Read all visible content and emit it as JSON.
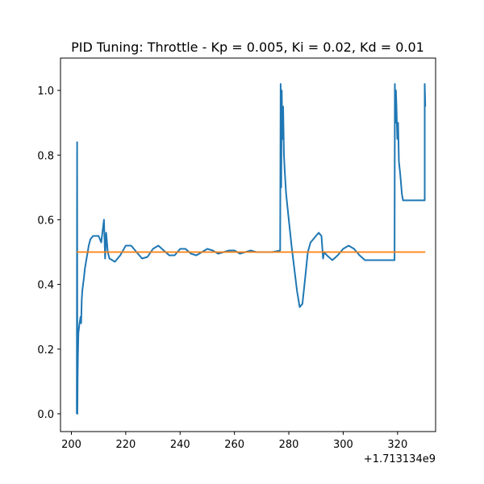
{
  "chart_data": {
    "type": "line",
    "title": "PID Tuning: Throttle - Kp = 0.005, Ki = 0.02, Kd = 0.01",
    "xlabel": "",
    "ylabel": "",
    "x_offset_label": "+1.713134e9",
    "xlim": [
      196,
      334
    ],
    "ylim": [
      -0.055,
      1.1
    ],
    "x_ticks": [
      200,
      220,
      240,
      260,
      280,
      300,
      320
    ],
    "y_ticks": [
      0.0,
      0.2,
      0.4,
      0.6,
      0.8,
      1.0
    ],
    "x_tick_labels": [
      "200",
      "220",
      "240",
      "260",
      "280",
      "300",
      "320"
    ],
    "y_tick_labels": [
      "0.0",
      "0.2",
      "0.4",
      "0.6",
      "0.8",
      "1.0"
    ],
    "grid": false,
    "legend": "none",
    "series": [
      {
        "color": "#1f77b4",
        "x": [
          202.0,
          202.1,
          202.2,
          202.3,
          202.4,
          202.6,
          203.0,
          203.4,
          203.6,
          203.8,
          204.0,
          204.6,
          205.0,
          205.6,
          206.0,
          206.4,
          207.0,
          208.0,
          209.0,
          210.0,
          211.0,
          212.0,
          212.4,
          212.8,
          213.4,
          214.0,
          216.0,
          218.0,
          220.0,
          222.0,
          224.0,
          226.0,
          228.0,
          230.0,
          232.0,
          234.0,
          236.0,
          238.0,
          240.0,
          242.0,
          244.0,
          246.0,
          248.0,
          250.0,
          252.0,
          254.0,
          256.0,
          258.0,
          260.0,
          262.0,
          264.0,
          266.0,
          268.0,
          270.0,
          274.0,
          276.8,
          277.0,
          277.2,
          277.4,
          277.6,
          277.9,
          278.2,
          278.5,
          279.0,
          280.0,
          281.0,
          282.0,
          283.0,
          284.0,
          285.0,
          286.0,
          287.0,
          288.0,
          289.0,
          290.0,
          291.0,
          292.0,
          292.6,
          293.0,
          294.0,
          296.0,
          298.0,
          300.0,
          302.0,
          304.0,
          306.0,
          308.0,
          310.0,
          314.0,
          318.9,
          319.0,
          319.2,
          319.4,
          319.6,
          319.9,
          320.2,
          320.5,
          321.0,
          321.6,
          322.0,
          324.0,
          326.0,
          328.0,
          330.0,
          330.0,
          330.2
        ],
        "y": [
          0.0,
          0.84,
          0.0,
          0.1,
          0.18,
          0.25,
          0.28,
          0.3,
          0.28,
          0.35,
          0.38,
          0.42,
          0.45,
          0.48,
          0.5,
          0.52,
          0.54,
          0.55,
          0.55,
          0.55,
          0.53,
          0.6,
          0.48,
          0.56,
          0.5,
          0.48,
          0.47,
          0.49,
          0.52,
          0.52,
          0.5,
          0.48,
          0.485,
          0.51,
          0.52,
          0.505,
          0.49,
          0.49,
          0.51,
          0.51,
          0.495,
          0.49,
          0.5,
          0.51,
          0.505,
          0.495,
          0.5,
          0.505,
          0.505,
          0.495,
          0.5,
          0.505,
          0.5,
          0.5,
          0.5,
          0.505,
          1.02,
          0.7,
          1.0,
          0.85,
          0.95,
          0.8,
          0.75,
          0.68,
          0.6,
          0.52,
          0.45,
          0.38,
          0.33,
          0.34,
          0.42,
          0.5,
          0.53,
          0.54,
          0.55,
          0.56,
          0.55,
          0.48,
          0.5,
          0.49,
          0.475,
          0.49,
          0.51,
          0.52,
          0.51,
          0.49,
          0.475,
          0.475,
          0.475,
          0.475,
          1.02,
          0.9,
          1.0,
          0.95,
          0.85,
          0.9,
          0.78,
          0.74,
          0.68,
          0.66,
          0.66,
          0.66,
          0.66,
          0.66,
          1.02,
          0.95
        ]
      },
      {
        "color": "#ff7f0e",
        "x": [
          202.0,
          330.2
        ],
        "y": [
          0.5,
          0.5
        ]
      }
    ]
  }
}
